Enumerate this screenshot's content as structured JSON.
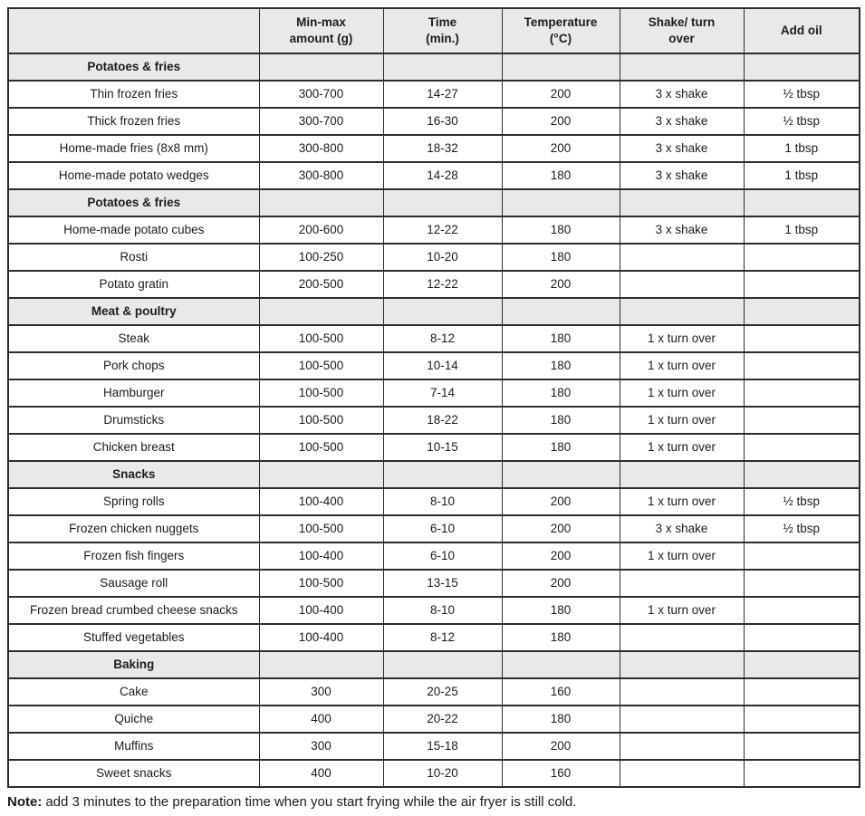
{
  "table": {
    "columns": [
      {
        "label": ""
      },
      {
        "label": "Min-max\namount (g)"
      },
      {
        "label": "Time\n(min.)"
      },
      {
        "label": "Temperature\n(°C)"
      },
      {
        "label": "Shake/ turn\nover"
      },
      {
        "label": "Add oil"
      }
    ],
    "rows": [
      {
        "type": "section",
        "label": "Potatoes & fries"
      },
      {
        "type": "item",
        "cells": [
          "Thin frozen fries",
          "300-700",
          "14-27",
          "200",
          "3 x shake",
          "½ tbsp"
        ]
      },
      {
        "type": "item",
        "cells": [
          "Thick frozen fries",
          "300-700",
          "16-30",
          "200",
          "3 x shake",
          "½ tbsp"
        ]
      },
      {
        "type": "item",
        "cells": [
          "Home-made fries (8x8 mm)",
          "300-800",
          "18-32",
          "200",
          "3 x shake",
          "1 tbsp"
        ]
      },
      {
        "type": "item",
        "cells": [
          "Home-made potato wedges",
          "300-800",
          "14-28",
          "180",
          "3 x shake",
          "1 tbsp"
        ]
      },
      {
        "type": "section",
        "label": "Potatoes & fries"
      },
      {
        "type": "item",
        "cells": [
          "Home-made potato cubes",
          "200-600",
          "12-22",
          "180",
          "3 x shake",
          "1 tbsp"
        ]
      },
      {
        "type": "item",
        "cells": [
          "Rosti",
          "100-250",
          "10-20",
          "180",
          "",
          ""
        ]
      },
      {
        "type": "item",
        "cells": [
          "Potato gratin",
          "200-500",
          "12-22",
          "200",
          "",
          ""
        ]
      },
      {
        "type": "section",
        "label": "Meat & poultry"
      },
      {
        "type": "item",
        "cells": [
          "Steak",
          "100-500",
          "8-12",
          "180",
          "1 x turn over",
          ""
        ]
      },
      {
        "type": "item",
        "cells": [
          "Pork chops",
          "100-500",
          "10-14",
          "180",
          "1 x turn over",
          ""
        ]
      },
      {
        "type": "item",
        "cells": [
          "Hamburger",
          "100-500",
          "7-14",
          "180",
          "1 x turn over",
          ""
        ]
      },
      {
        "type": "item",
        "cells": [
          "Drumsticks",
          "100-500",
          "18-22",
          "180",
          "1 x turn over",
          ""
        ]
      },
      {
        "type": "item",
        "cells": [
          "Chicken breast",
          "100-500",
          "10-15",
          "180",
          "1 x turn over",
          ""
        ]
      },
      {
        "type": "section",
        "label": "Snacks"
      },
      {
        "type": "item",
        "cells": [
          "Spring rolls",
          "100-400",
          "8-10",
          "200",
          "1 x turn over",
          "½ tbsp"
        ]
      },
      {
        "type": "item",
        "cells": [
          "Frozen chicken nuggets",
          "100-500",
          "6-10",
          "200",
          "3 x shake",
          "½ tbsp"
        ]
      },
      {
        "type": "item",
        "cells": [
          "Frozen fish fingers",
          "100-400",
          "6-10",
          "200",
          "1 x turn over",
          ""
        ]
      },
      {
        "type": "item",
        "cells": [
          "Sausage roll",
          "100-500",
          "13-15",
          "200",
          "",
          ""
        ]
      },
      {
        "type": "item",
        "cells": [
          "Frozen bread crumbed cheese snacks",
          "100-400",
          "8-10",
          "180",
          "1 x turn over",
          ""
        ]
      },
      {
        "type": "item",
        "cells": [
          "Stuffed vegetables",
          "100-400",
          "8-12",
          "180",
          "",
          ""
        ]
      },
      {
        "type": "section",
        "label": "Baking"
      },
      {
        "type": "item",
        "cells": [
          "Cake",
          "300",
          "20-25",
          "160",
          "",
          ""
        ]
      },
      {
        "type": "item",
        "cells": [
          "Quiche",
          "400",
          "20-22",
          "180",
          "",
          ""
        ]
      },
      {
        "type": "item",
        "cells": [
          "Muffins",
          "300",
          "15-18",
          "200",
          "",
          ""
        ]
      },
      {
        "type": "item",
        "cells": [
          "Sweet snacks",
          "400",
          "10-20",
          "160",
          "",
          ""
        ]
      }
    ]
  },
  "note": {
    "label": "Note:",
    "text": "add 3 minutes to the preparation time when you start frying while the air fryer is still cold."
  },
  "colors": {
    "border": "#2d2d2d",
    "section_bg": "#e9e9e9",
    "text": "#1c1c1c"
  }
}
